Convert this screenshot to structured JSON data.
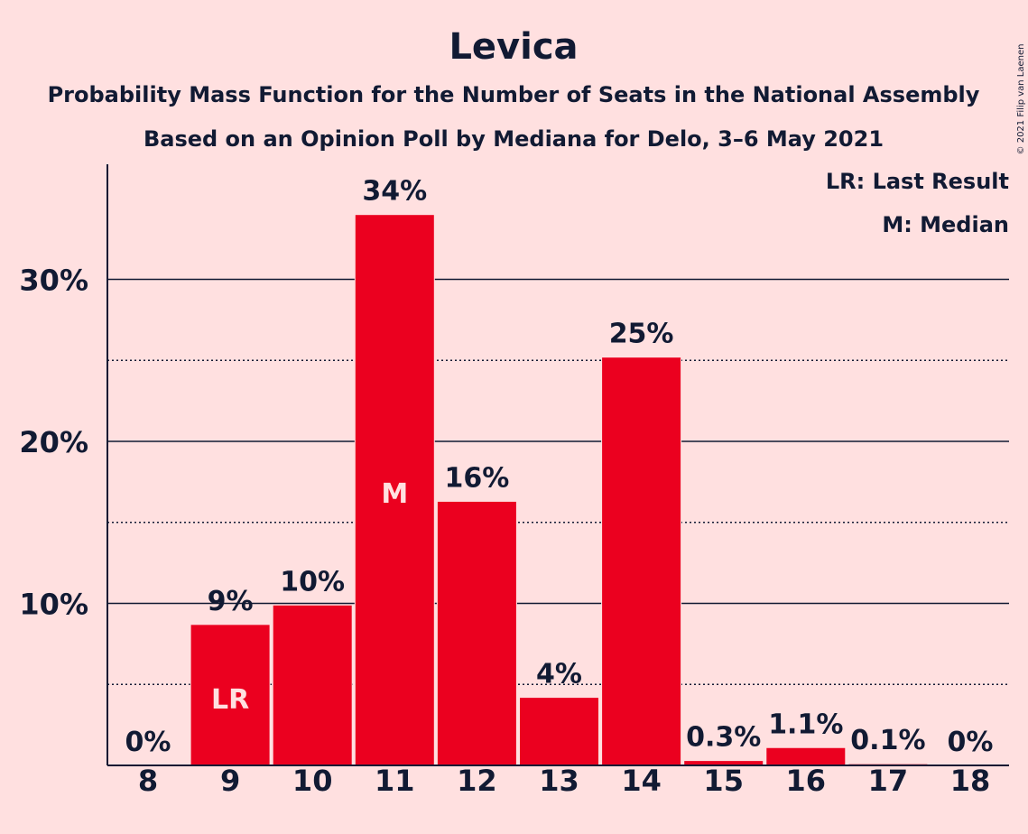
{
  "chart_data": {
    "type": "bar",
    "title": "Levica",
    "subtitle": "Probability Mass Function for the Number of Seats in the National Assembly",
    "subtitle2": "Based on an Opinion Poll by Mediana for Delo, 3–6 May 2021",
    "copyright": "© 2021 Filip van Laenen",
    "legend": [
      "LR: Last Result",
      "M: Median"
    ],
    "categories": [
      "8",
      "9",
      "10",
      "11",
      "12",
      "13",
      "14",
      "15",
      "16",
      "17",
      "18"
    ],
    "values": [
      0,
      8.7,
      9.9,
      34.0,
      16.3,
      4.2,
      25.2,
      0.3,
      1.1,
      0.1,
      0
    ],
    "data_labels": [
      "0%",
      "9%",
      "10%",
      "34%",
      "16%",
      "4%",
      "25%",
      "0.3%",
      "1.1%",
      "0.1%",
      "0%"
    ],
    "inbar_labels": [
      "",
      "LR",
      "",
      "M",
      "",
      "",
      "",
      "",
      "",
      "",
      ""
    ],
    "yticks": [
      10,
      20,
      30
    ],
    "ytick_labels": [
      "10%",
      "20%",
      "30%"
    ],
    "ylim": [
      0,
      37
    ],
    "grid": "major solid every 10%, minor dotted every 5%",
    "bar_color": "#EB001F",
    "text_color": "#111a33",
    "background": "#FFE0E0"
  }
}
